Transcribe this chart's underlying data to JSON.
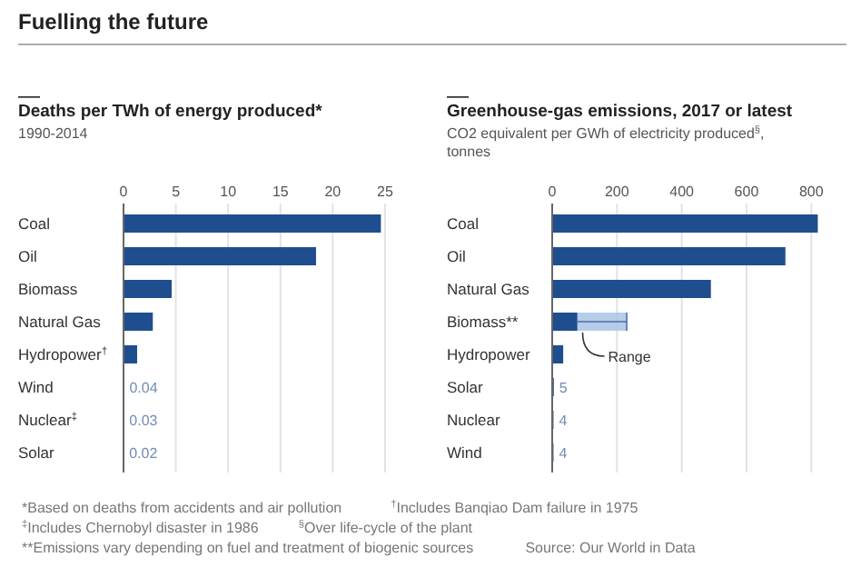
{
  "chart_data": [
    {
      "type": "other",
      "title": "Fuelling the future",
      "annotations": [
        "*Based on deaths from accidents and air pollution",
        "$^{†}$Includes Banqiao Dam failure in 1975",
        "$^{‡}$Includes Chernobyl disaster in 1986",
        "$^{§}$Over life-cycle of the plant",
        "**Emissions vary depending on fuel and treatment of biogenic sources",
        "Source: Our World in Data"
      ]
    },
    {
      "type": "bar",
      "orientation": "horizontal",
      "title": "Deaths per TWh of energy produced*",
      "subtitle": "1990-2014",
      "categories": [
        "Coal",
        "Oil",
        "Biomass",
        "Natural Gas",
        "Hydropower$^{†}$",
        "Wind",
        "Nuclear$^{‡}$",
        "Solar"
      ],
      "values": [
        24.6,
        18.4,
        4.6,
        2.8,
        1.3,
        0.04,
        0.03,
        0.02
      ],
      "value_labels": [
        null,
        null,
        null,
        null,
        null,
        "0.04",
        "0.03",
        "0.02"
      ],
      "color": "#1f4e8f",
      "xlim": [
        0,
        25
      ],
      "xticks": [
        0,
        5,
        10,
        15,
        20,
        25
      ],
      "grid": "x"
    },
    {
      "type": "bar",
      "orientation": "horizontal",
      "title": "Greenhouse-gas emissions, 2017 or latest",
      "subtitle": "CO2 equivalent per GWh of electricity produced$^{§}$, tonnes",
      "categories": [
        "Coal",
        "Oil",
        "Natural Gas",
        "Biomass**",
        "Hydropower",
        "Solar",
        "Nuclear",
        "Wind"
      ],
      "values": [
        820,
        720,
        490,
        78,
        34,
        5,
        4,
        4
      ],
      "value_labels": [
        null,
        null,
        null,
        null,
        null,
        "5",
        "4",
        "4"
      ],
      "errors": [
        null,
        null,
        null,
        [
          78,
          230
        ],
        null,
        null,
        null,
        null
      ],
      "annotations": [
        {
          "text": "Range",
          "x": 150,
          "y": "Biomass**"
        }
      ],
      "color": "#1f4e8f",
      "xlim": [
        0,
        830
      ],
      "xticks": [
        0,
        200,
        400,
        600,
        800
      ],
      "grid": "x"
    }
  ]
}
